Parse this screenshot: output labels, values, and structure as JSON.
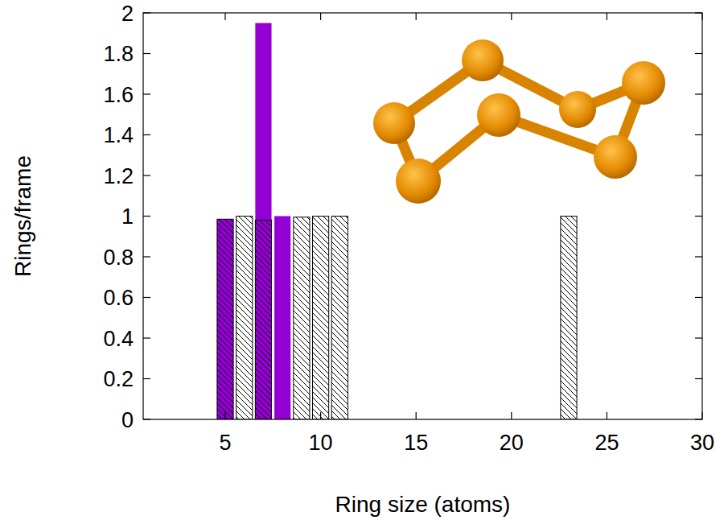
{
  "chart_data": {
    "type": "bar",
    "x_label": "Ring size (atoms)",
    "y_label": "Rings/frame",
    "x": [
      5,
      6,
      7,
      8,
      9,
      10,
      11,
      23
    ],
    "series": [
      {
        "color": "#9400d3",
        "marker": "solid",
        "values": [
          0.985,
          null,
          1.95,
          1.0,
          null,
          null,
          null,
          null
        ]
      },
      {
        "color": "#000000",
        "marker": "hatch",
        "values": [
          0.985,
          1.0,
          0.98,
          null,
          0.995,
          1.0,
          1.0,
          1.0
        ]
      }
    ],
    "xlim": [
      0.7,
      30
    ],
    "xticks": [
      5,
      10,
      15,
      20,
      25,
      30
    ],
    "ylim": [
      0,
      2
    ],
    "yticks": [
      0,
      0.2,
      0.4,
      0.6,
      0.8,
      1,
      1.2,
      1.4,
      1.6,
      1.8,
      2
    ],
    "grid": false
  }
}
